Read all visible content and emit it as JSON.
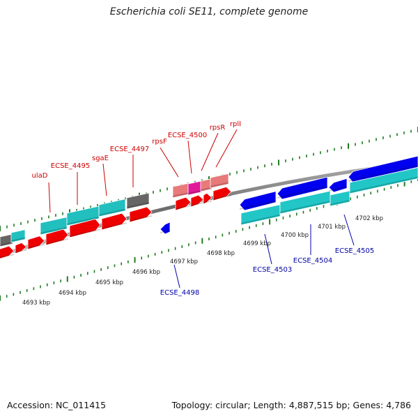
{
  "title": "Escherichia coli SE11, complete genome",
  "footer": {
    "accession": "Accession: NC_011415",
    "summary": "Topology: circular; Length: 4,887,515 bp; Genes: 4,786"
  },
  "colors": {
    "backbone": "#8a8a8a",
    "tick": "#1f7a1f",
    "label_forward": "#cc0000",
    "label_reverse": "#0000aa",
    "scale_text": "#222222"
  },
  "scale_labels": [
    "4693 kbp",
    "4694 kbp",
    "4695 kbp",
    "4696 kbp",
    "4697 kbp",
    "4698 kbp",
    "4699 kbp",
    "4700 kbp",
    "4701 kbp",
    "4702 kbp"
  ],
  "gene_labels_forward": [
    "ulaD",
    "ECSE_4495",
    "sgaE",
    "ECSE_4497",
    "rpsF",
    "ECSE_4500",
    "rpsR",
    "rplI"
  ],
  "gene_labels_reverse": [
    "ECSE_4498",
    "ECSE_4503",
    "ECSE_4504",
    "ECSE_4505"
  ],
  "feature_types": {
    "cds_forward": "#ee0000",
    "cds_reverse": "#0000ee",
    "gene_forward": "#22bfbf",
    "gene_reverse": "#22c6c6",
    "rrna_like": "#e87a7a",
    "rna_highlight": "#e01a9a",
    "other": "#666666"
  }
}
